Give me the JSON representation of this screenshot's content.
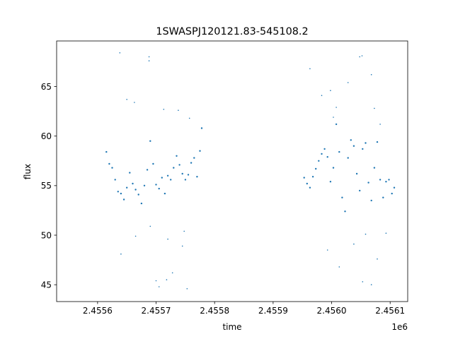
{
  "chart_data": {
    "type": "scatter",
    "title": "1SWASPJ120121.83-545108.2",
    "xlabel": "time",
    "ylabel": "flux",
    "x_offset_label": "1e6",
    "xlim": [
      2.45553,
      2.45613
    ],
    "ylim": [
      43.3,
      69.6
    ],
    "x_ticks": [
      2.4556,
      2.4557,
      2.4558,
      2.4559,
      2.456,
      2.4561
    ],
    "x_tick_labels": [
      "2.4556",
      "2.4557",
      "2.4558",
      "2.4559",
      "2.4560",
      "2.4561"
    ],
    "y_ticks": [
      45,
      50,
      55,
      60,
      65
    ],
    "y_tick_labels": [
      "45",
      "50",
      "55",
      "60",
      "65"
    ],
    "grid": false,
    "legend": "none",
    "marker_color": "#1f77b4",
    "series": [
      {
        "points": [
          [
            2.455615,
            58.4
          ],
          [
            2.45562,
            57.2
          ],
          [
            2.455625,
            56.8
          ],
          [
            2.45563,
            55.6
          ],
          [
            2.455635,
            54.4
          ],
          [
            2.45564,
            54.2
          ],
          [
            2.455645,
            53.6
          ],
          [
            2.45565,
            54.8
          ],
          [
            2.455655,
            56.3
          ],
          [
            2.45566,
            55.2
          ],
          [
            2.455665,
            54.6
          ],
          [
            2.45567,
            54.1
          ],
          [
            2.455675,
            53.2
          ],
          [
            2.45568,
            55.0
          ],
          [
            2.455685,
            56.6
          ],
          [
            2.45569,
            59.5
          ],
          [
            2.455695,
            57.2
          ],
          [
            2.4557,
            55.1
          ],
          [
            2.455705,
            54.7
          ],
          [
            2.45571,
            55.8
          ],
          [
            2.455715,
            54.2
          ],
          [
            2.45572,
            56.0
          ],
          [
            2.455725,
            55.6
          ],
          [
            2.45573,
            56.8
          ],
          [
            2.455735,
            58.0
          ],
          [
            2.45574,
            57.1
          ],
          [
            2.455745,
            56.2
          ],
          [
            2.45575,
            55.6
          ],
          [
            2.455755,
            56.1
          ],
          [
            2.45576,
            57.3
          ],
          [
            2.455765,
            57.8
          ],
          [
            2.45577,
            55.9
          ],
          [
            2.455775,
            58.5
          ],
          [
            2.455778,
            60.8
          ],
          [
            2.455953,
            55.8
          ],
          [
            2.455958,
            55.2
          ],
          [
            2.455963,
            54.8
          ],
          [
            2.455968,
            55.9
          ],
          [
            2.455973,
            56.7
          ],
          [
            2.455978,
            57.5
          ],
          [
            2.455983,
            58.2
          ],
          [
            2.455988,
            58.7
          ],
          [
            2.455993,
            57.9
          ],
          [
            2.455998,
            55.4
          ],
          [
            2.456003,
            56.8
          ],
          [
            2.456008,
            61.2
          ],
          [
            2.456013,
            58.4
          ],
          [
            2.456018,
            53.8
          ],
          [
            2.456023,
            52.4
          ],
          [
            2.456028,
            57.8
          ],
          [
            2.456033,
            59.6
          ],
          [
            2.456038,
            59.0
          ],
          [
            2.456043,
            56.2
          ],
          [
            2.456048,
            54.5
          ],
          [
            2.456053,
            58.7
          ],
          [
            2.456058,
            59.3
          ],
          [
            2.456063,
            55.3
          ],
          [
            2.456068,
            53.5
          ],
          [
            2.456073,
            56.8
          ],
          [
            2.456078,
            59.4
          ],
          [
            2.456083,
            55.6
          ],
          [
            2.456088,
            53.8
          ],
          [
            2.456093,
            55.4
          ],
          [
            2.456098,
            55.6
          ],
          [
            2.456103,
            54.2
          ],
          [
            2.456107,
            54.8
          ]
        ],
        "outliers": [
          [
            2.455638,
            68.4
          ],
          [
            2.45565,
            63.7
          ],
          [
            2.455663,
            63.4
          ],
          [
            2.455688,
            68.0
          ],
          [
            2.455688,
            67.6
          ],
          [
            2.4557,
            45.4
          ],
          [
            2.455705,
            44.8
          ],
          [
            2.455713,
            62.7
          ],
          [
            2.455718,
            45.5
          ],
          [
            2.455728,
            46.2
          ],
          [
            2.455738,
            62.6
          ],
          [
            2.455745,
            48.9
          ],
          [
            2.455753,
            44.6
          ],
          [
            2.455757,
            61.8
          ],
          [
            2.45564,
            48.1
          ],
          [
            2.455665,
            49.9
          ],
          [
            2.45569,
            50.9
          ],
          [
            2.45572,
            49.6
          ],
          [
            2.455748,
            50.4
          ],
          [
            2.455963,
            66.8
          ],
          [
            2.455983,
            64.1
          ],
          [
            2.455998,
            64.6
          ],
          [
            2.456008,
            62.9
          ],
          [
            2.456028,
            65.4
          ],
          [
            2.456048,
            68.0
          ],
          [
            2.456052,
            68.1
          ],
          [
            2.456068,
            66.2
          ],
          [
            2.456073,
            62.8
          ],
          [
            2.455993,
            48.5
          ],
          [
            2.456013,
            46.8
          ],
          [
            2.456038,
            49.1
          ],
          [
            2.456053,
            45.3
          ],
          [
            2.456068,
            45.0
          ],
          [
            2.456078,
            47.6
          ],
          [
            2.456093,
            50.2
          ],
          [
            2.456058,
            50.1
          ],
          [
            2.456003,
            61.9
          ],
          [
            2.456083,
            61.2
          ]
        ]
      }
    ]
  }
}
